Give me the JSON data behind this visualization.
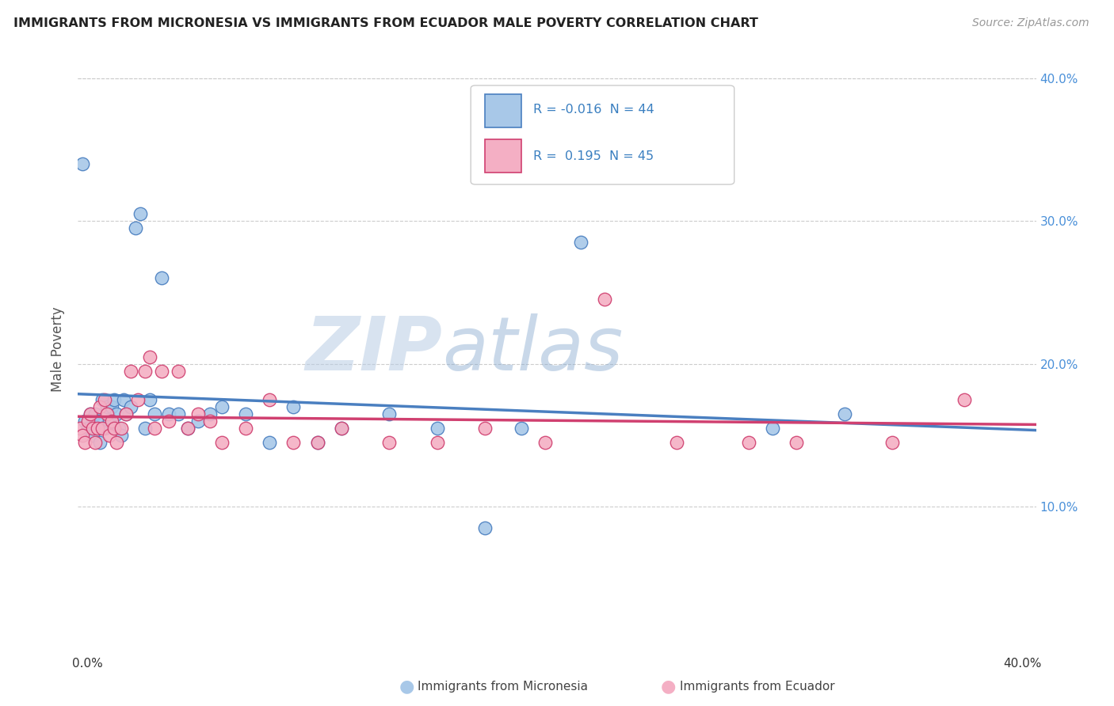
{
  "title": "IMMIGRANTS FROM MICRONESIA VS IMMIGRANTS FROM ECUADOR MALE POVERTY CORRELATION CHART",
  "source": "Source: ZipAtlas.com",
  "ylabel": "Male Poverty",
  "xmin": 0.0,
  "xmax": 0.4,
  "ymin": 0.0,
  "ymax": 0.42,
  "yticks": [
    0.1,
    0.2,
    0.3,
    0.4
  ],
  "ytick_labels": [
    "10.0%",
    "20.0%",
    "30.0%",
    "40.0%"
  ],
  "legend_labels": [
    "Immigrants from Micronesia",
    "Immigrants from Ecuador"
  ],
  "r_micronesia": "-0.016",
  "n_micronesia": "44",
  "r_ecuador": "0.195",
  "n_ecuador": "45",
  "color_micronesia": "#a8c8e8",
  "color_ecuador": "#f4afc4",
  "line_color_micronesia": "#4a7fc0",
  "line_color_ecuador": "#d04070",
  "watermark_color": "#d0dce8",
  "micronesia_x": [
    0.002,
    0.003,
    0.004,
    0.005,
    0.006,
    0.007,
    0.008,
    0.009,
    0.01,
    0.011,
    0.012,
    0.013,
    0.014,
    0.015,
    0.016,
    0.017,
    0.018,
    0.019,
    0.02,
    0.022,
    0.024,
    0.026,
    0.028,
    0.03,
    0.032,
    0.035,
    0.038,
    0.042,
    0.046,
    0.05,
    0.055,
    0.06,
    0.07,
    0.08,
    0.09,
    0.1,
    0.11,
    0.13,
    0.15,
    0.17,
    0.185,
    0.21,
    0.29,
    0.32
  ],
  "micronesia_y": [
    0.34,
    0.16,
    0.155,
    0.165,
    0.15,
    0.165,
    0.16,
    0.145,
    0.175,
    0.155,
    0.17,
    0.16,
    0.17,
    0.175,
    0.165,
    0.155,
    0.15,
    0.175,
    0.165,
    0.17,
    0.295,
    0.305,
    0.155,
    0.175,
    0.165,
    0.26,
    0.165,
    0.165,
    0.155,
    0.16,
    0.165,
    0.17,
    0.165,
    0.145,
    0.17,
    0.145,
    0.155,
    0.165,
    0.155,
    0.085,
    0.155,
    0.285,
    0.155,
    0.165
  ],
  "ecuador_x": [
    0.001,
    0.002,
    0.003,
    0.004,
    0.005,
    0.006,
    0.007,
    0.008,
    0.009,
    0.01,
    0.011,
    0.012,
    0.013,
    0.014,
    0.015,
    0.016,
    0.018,
    0.02,
    0.022,
    0.025,
    0.028,
    0.03,
    0.032,
    0.035,
    0.038,
    0.042,
    0.046,
    0.05,
    0.055,
    0.06,
    0.07,
    0.08,
    0.09,
    0.1,
    0.11,
    0.13,
    0.15,
    0.17,
    0.195,
    0.22,
    0.25,
    0.28,
    0.3,
    0.34,
    0.37
  ],
  "ecuador_y": [
    0.155,
    0.15,
    0.145,
    0.16,
    0.165,
    0.155,
    0.145,
    0.155,
    0.17,
    0.155,
    0.175,
    0.165,
    0.15,
    0.16,
    0.155,
    0.145,
    0.155,
    0.165,
    0.195,
    0.175,
    0.195,
    0.205,
    0.155,
    0.195,
    0.16,
    0.195,
    0.155,
    0.165,
    0.16,
    0.145,
    0.155,
    0.175,
    0.145,
    0.145,
    0.155,
    0.145,
    0.145,
    0.155,
    0.145,
    0.245,
    0.145,
    0.145,
    0.145,
    0.145,
    0.175
  ]
}
